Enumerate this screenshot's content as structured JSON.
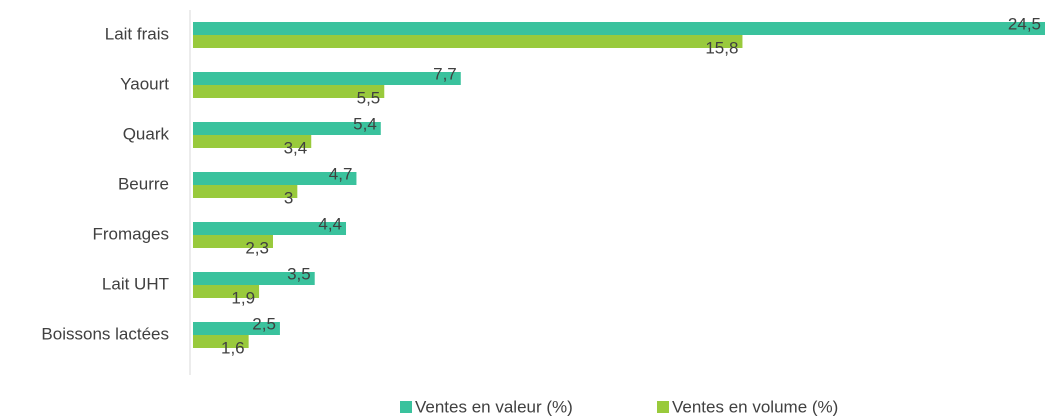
{
  "chart_data": {
    "type": "hbar",
    "categories": [
      "Lait frais",
      "Yaourt",
      "Quark",
      "Beurre",
      "Fromages",
      "Lait UHT",
      "Boissons lactées"
    ],
    "xlim": [
      0,
      24.5
    ],
    "legend": "bottom",
    "series": [
      {
        "name": "Ventes en valeur (%)",
        "color": "#3ac29d",
        "values": [
          24.5,
          7.7,
          5.4,
          4.7,
          4.4,
          3.5,
          2.5
        ],
        "value_labels": [
          "24,5",
          "7,7",
          "5,4",
          "4,7",
          "4,4",
          "3,5",
          "2,5"
        ]
      },
      {
        "name": "Ventes en volume (%)",
        "color": "#99ca3c",
        "values": [
          15.8,
          5.5,
          3.4,
          3,
          2.3,
          1.9,
          1.6
        ],
        "value_labels": [
          "15,8",
          "5,5",
          "3,4",
          "3",
          "2,3",
          "1,9",
          "1,6"
        ]
      }
    ]
  }
}
